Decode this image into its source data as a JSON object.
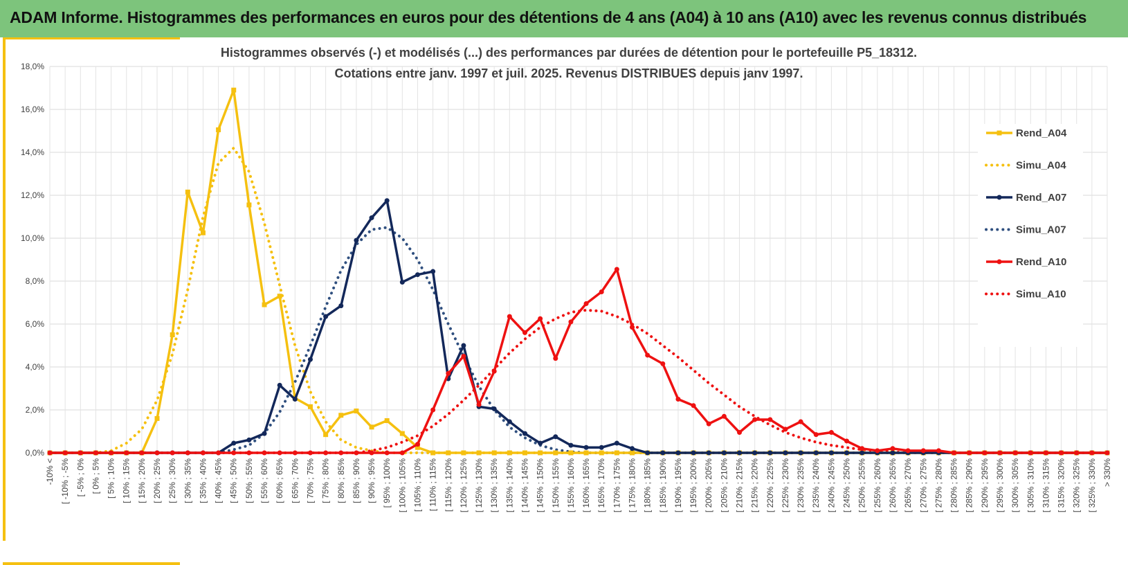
{
  "header": {
    "title": "ADAM Informe. Histogrammes des performances en euros pour des détentions de 4 ans (A04) à 10 ans (A10) avec les revenus connus distribués"
  },
  "chart_data": {
    "type": "line",
    "title": "Histogrammes observés (-) et modélisés (...) des performances par durées de détention pour le portefeuille P5_18312.",
    "subtitle": "Cotations entre janv. 1997 et juil. 2025. Revenus DISTRIBUES depuis janv 1997.",
    "xlabel": "",
    "ylabel": "",
    "ylim": [
      0,
      18
    ],
    "y_ticks": [
      "0,0%",
      "2,0%",
      "4,0%",
      "6,0%",
      "8,0%",
      "10,0%",
      "12,0%",
      "14,0%",
      "16,0%",
      "18,0%"
    ],
    "y_tick_values": [
      0,
      2,
      4,
      6,
      8,
      10,
      12,
      14,
      16,
      18
    ],
    "grid": true,
    "legend_position": "right",
    "categories": [
      "-10% <",
      "[ -10% ; -5%",
      "[ -5% ; 0%",
      "[ 0% ; 5%",
      "[ 5% ; 10%",
      "[ 10% ; 15%",
      "[ 15% ; 20%",
      "[ 20% ; 25%",
      "[ 25% ; 30%",
      "[ 30% ; 35%",
      "[ 35% ; 40%",
      "[ 40% ; 45%",
      "[ 45% ; 50%",
      "[ 50% ; 55%",
      "[ 55% ; 60%",
      "[ 60% ; 65%",
      "[ 65% ; 70%",
      "[ 70% ; 75%",
      "[ 75% ; 80%",
      "[ 80% ; 85%",
      "[ 85% ; 90%",
      "[ 90% ; 95%",
      "[ 95% ; 100%",
      "[ 100% ; 105%",
      "[ 105% ; 110%",
      "[ 110% ; 115%",
      "[ 115% ; 120%",
      "[ 120% ; 125%",
      "[ 125% ; 130%",
      "[ 130% ; 135%",
      "[ 135% ; 140%",
      "[ 140% ; 145%",
      "[ 145% ; 150%",
      "[ 150% ; 155%",
      "[ 155% ; 160%",
      "[ 160% ; 165%",
      "[ 165% ; 170%",
      "[ 170% ; 175%",
      "[ 175% ; 180%",
      "[ 180% ; 185%",
      "[ 185% ; 190%",
      "[ 190% ; 195%",
      "[ 195% ; 200%",
      "[ 200% ; 205%",
      "[ 205% ; 210%",
      "[ 210% ; 215%",
      "[ 215% ; 220%",
      "[ 220% ; 225%",
      "[ 225% ; 230%",
      "[ 230% ; 235%",
      "[ 235% ; 240%",
      "[ 240% ; 245%",
      "[ 245% ; 250%",
      "[ 250% ; 255%",
      "[ 255% ; 260%",
      "[ 260% ; 265%",
      "[ 265% ; 270%",
      "[ 270% ; 275%",
      "[ 275% ; 280%",
      "[ 280% ; 285%",
      "[ 285% ; 290%",
      "[ 290% ; 295%",
      "[ 295% ; 300%",
      "[ 300% ; 305%",
      "[ 305% ; 310%",
      "[ 310% ; 315%",
      "[ 315% ; 320%",
      "[ 320% ; 325%",
      "[ 325% ; 330%",
      "> 330%"
    ],
    "series": [
      {
        "name": "Rend_A04",
        "style": "solid",
        "marker": "square",
        "color": "#f5c010",
        "values": [
          0,
          0,
          0,
          0,
          0,
          0,
          0,
          1.6,
          5.5,
          12.15,
          10.25,
          15.05,
          16.9,
          11.55,
          6.9,
          7.3,
          2.55,
          2.15,
          0.85,
          1.75,
          1.95,
          1.2,
          1.5,
          0.9,
          0.25,
          0,
          0,
          0,
          0,
          0,
          0,
          0,
          0,
          0,
          0,
          0,
          0,
          0,
          0,
          0,
          0,
          0,
          0,
          0,
          0,
          0,
          0,
          0,
          0,
          0,
          0,
          0,
          0,
          0,
          0,
          0,
          0,
          0,
          0,
          0,
          0,
          0,
          0,
          0,
          0,
          0,
          0,
          0,
          0,
          0
        ]
      },
      {
        "name": "Simu_A04",
        "style": "dotted",
        "color": "#f5c010",
        "values": [
          0,
          0,
          0,
          0,
          0.1,
          0.45,
          1.1,
          2.45,
          4.6,
          7.6,
          11.0,
          13.5,
          14.2,
          13.1,
          10.7,
          7.8,
          5.0,
          2.85,
          1.45,
          0.6,
          0.25,
          0.1,
          0,
          0,
          0,
          0,
          0,
          0,
          0,
          0,
          0,
          0,
          0,
          0,
          0,
          0,
          0,
          0,
          0,
          0,
          0,
          0,
          0,
          0,
          0,
          0,
          0,
          0,
          0,
          0,
          0,
          0,
          0,
          0,
          0,
          0,
          0,
          0,
          0,
          0,
          0,
          0,
          0,
          0,
          0,
          0,
          0,
          0,
          0,
          0
        ]
      },
      {
        "name": "Rend_A07",
        "style": "solid",
        "marker": "circle",
        "color": "#13285a",
        "values": [
          0,
          0,
          0,
          0,
          0,
          0,
          0,
          0,
          0,
          0,
          0,
          0,
          0.45,
          0.6,
          0.9,
          3.15,
          2.5,
          4.35,
          6.35,
          6.85,
          9.9,
          10.95,
          11.75,
          7.95,
          8.3,
          8.45,
          3.45,
          5.0,
          2.15,
          2.05,
          1.45,
          0.9,
          0.45,
          0.75,
          0.35,
          0.25,
          0.25,
          0.45,
          0.2,
          0,
          0,
          0,
          0,
          0,
          0,
          0,
          0,
          0,
          0,
          0,
          0,
          0,
          0,
          0,
          0,
          0,
          0,
          0,
          0,
          0,
          0,
          0,
          0,
          0,
          0,
          0,
          0,
          0,
          0,
          0
        ]
      },
      {
        "name": "Simu_A07",
        "style": "dotted",
        "color": "#2f4f7f",
        "values": [
          0,
          0,
          0,
          0,
          0,
          0,
          0,
          0,
          0,
          0,
          0,
          0,
          0.15,
          0.35,
          0.9,
          1.9,
          3.3,
          5.0,
          6.8,
          8.5,
          9.7,
          10.4,
          10.5,
          10.0,
          9.0,
          7.6,
          6.0,
          4.5,
          3.1,
          2.0,
          1.2,
          0.7,
          0.35,
          0.15,
          0.05,
          0,
          0,
          0,
          0,
          0,
          0,
          0,
          0,
          0,
          0,
          0,
          0,
          0,
          0,
          0,
          0,
          0,
          0,
          0,
          0,
          0,
          0,
          0,
          0,
          0,
          0,
          0,
          0,
          0,
          0,
          0,
          0,
          0,
          0,
          0
        ]
      },
      {
        "name": "Rend_A10",
        "style": "solid",
        "marker": "circle",
        "color": "#ee1111",
        "values": [
          0,
          0,
          0,
          0,
          0,
          0,
          0,
          0,
          0,
          0,
          0,
          0,
          0,
          0,
          0,
          0,
          0,
          0,
          0,
          0,
          0,
          0,
          0,
          0,
          0.4,
          2.0,
          3.7,
          4.5,
          2.25,
          3.8,
          6.35,
          5.6,
          6.25,
          4.4,
          6.1,
          6.95,
          7.5,
          8.55,
          5.85,
          4.55,
          4.15,
          2.5,
          2.2,
          1.35,
          1.7,
          0.95,
          1.55,
          1.55,
          1.1,
          1.45,
          0.85,
          0.95,
          0.55,
          0.2,
          0.1,
          0.2,
          0.1,
          0.1,
          0.1,
          0,
          0,
          0,
          0,
          0,
          0,
          0,
          0,
          0,
          0,
          0
        ]
      },
      {
        "name": "Simu_A10",
        "style": "dotted",
        "color": "#ee1111",
        "values": [
          0,
          0,
          0,
          0,
          0,
          0,
          0,
          0,
          0,
          0,
          0,
          0,
          0,
          0,
          0,
          0,
          0,
          0,
          0,
          0,
          0,
          0.1,
          0.25,
          0.5,
          0.8,
          1.25,
          1.8,
          2.45,
          3.15,
          3.9,
          4.65,
          5.3,
          5.85,
          6.25,
          6.55,
          6.65,
          6.6,
          6.35,
          6.0,
          5.55,
          5.0,
          4.45,
          3.85,
          3.25,
          2.7,
          2.15,
          1.7,
          1.3,
          0.95,
          0.7,
          0.5,
          0.35,
          0.25,
          0.15,
          0.1,
          0.05,
          0,
          0,
          0,
          0,
          0,
          0,
          0,
          0,
          0,
          0,
          0,
          0,
          0,
          0
        ]
      }
    ]
  }
}
